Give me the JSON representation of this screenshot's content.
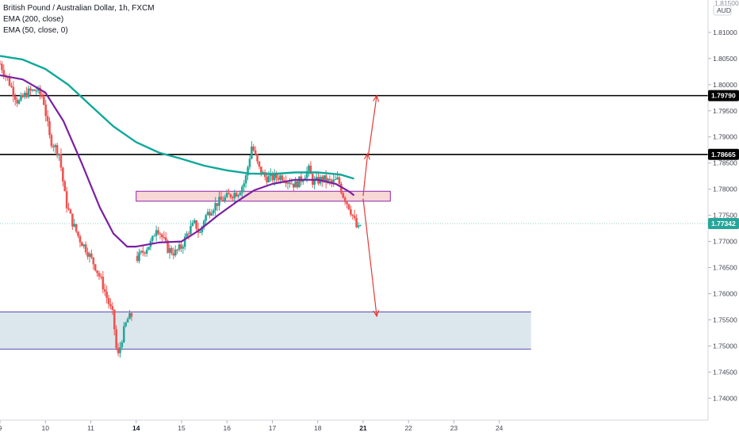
{
  "header": {
    "title": "British Pound / Australian Dollar, 1h, FXCM",
    "indicators": [
      "EMA (200, close)",
      "EMA (50, close, 0)"
    ]
  },
  "colors": {
    "bull": "#26a69a",
    "bear": "#ef5350",
    "ema200": "#0fa89a",
    "ema50": "#7b1fa2",
    "arrow": "#e53935",
    "resistance_line": "#000000",
    "current_price": "#26a69a",
    "supply_zone_fill": "#f8d7d7",
    "supply_zone_border": "#8e24aa",
    "demand_zone_fill": "#dbe7ec",
    "demand_zone_border": "#5c4bb6"
  },
  "chart_data": {
    "type": "candlestick",
    "title": "British Pound / Australian Dollar, 1h, FXCM",
    "y_axis": {
      "range": [
        1.7358,
        1.8162
      ],
      "ticks": [
        "1.81000",
        "1.80500",
        "1.80000",
        "1.79500",
        "1.79000",
        "1.78500",
        "1.78000",
        "1.77500",
        "1.77000",
        "1.76500",
        "1.76000",
        "1.75500",
        "1.75000",
        "1.74500",
        "1.74000"
      ],
      "currency_label": "AUD",
      "partial_top_label": "1.81500"
    },
    "x_axis": {
      "range_days": [
        9,
        24.6
      ],
      "labels": [
        {
          "day": 9,
          "text": "9",
          "bold": false
        },
        {
          "day": 10,
          "text": "10",
          "bold": false
        },
        {
          "day": 11,
          "text": "11",
          "bold": false
        },
        {
          "day": 12,
          "text": "14",
          "bold": true
        },
        {
          "day": 13,
          "text": "15",
          "bold": false
        },
        {
          "day": 14,
          "text": "16",
          "bold": false
        },
        {
          "day": 15,
          "text": "17",
          "bold": false
        },
        {
          "day": 16,
          "text": "18",
          "bold": false
        },
        {
          "day": 17,
          "text": "21",
          "bold": true
        },
        {
          "day": 18,
          "text": "22",
          "bold": false
        },
        {
          "day": 19,
          "text": "23",
          "bold": false
        },
        {
          "day": 20,
          "text": "24",
          "bold": false
        }
      ]
    },
    "horizontal_levels": [
      {
        "price": 1.7979,
        "label": "1.79790"
      },
      {
        "price": 1.78665,
        "label": "1.78665"
      }
    ],
    "current_price": {
      "price": 1.77342,
      "label": "1.77342"
    },
    "zones": [
      {
        "name": "supply",
        "from_day": 12.0,
        "to_day": 17.6,
        "high": 1.7796,
        "low": 1.7777
      },
      {
        "name": "demand",
        "from_day": 8.9,
        "to_day": 20.7,
        "high": 1.7565,
        "low": 1.7494
      }
    ],
    "projection_arrows": [
      {
        "from": [
          17.0,
          1.7787
        ],
        "to": [
          17.1,
          1.7868
        ]
      },
      {
        "from": [
          17.12,
          1.7868
        ],
        "to": [
          17.3,
          1.7979
        ]
      },
      {
        "from": [
          17.0,
          1.7782
        ],
        "to": [
          17.3,
          1.7557
        ]
      }
    ],
    "price_path": [
      [
        9.0,
        1.804
      ],
      [
        9.2,
        1.8005
      ],
      [
        9.4,
        1.7965
      ],
      [
        9.6,
        1.7985
      ],
      [
        9.8,
        1.799
      ],
      [
        9.95,
        1.7975
      ],
      [
        10.1,
        1.7895
      ],
      [
        10.3,
        1.787
      ],
      [
        10.45,
        1.7775
      ],
      [
        10.6,
        1.7735
      ],
      [
        10.75,
        1.7705
      ],
      [
        10.9,
        1.7685
      ],
      [
        11.0,
        1.7668
      ],
      [
        11.1,
        1.7652
      ],
      [
        11.25,
        1.762
      ],
      [
        11.4,
        1.758
      ],
      [
        11.5,
        1.7555
      ],
      [
        11.55,
        1.75
      ],
      [
        11.6,
        1.748
      ],
      [
        11.7,
        1.752
      ],
      [
        11.8,
        1.755
      ],
      [
        11.9,
        1.7558
      ],
      [
        12.0,
        1.7665
      ],
      [
        12.2,
        1.7685
      ],
      [
        12.35,
        1.77
      ],
      [
        12.45,
        1.773
      ],
      [
        12.55,
        1.7712
      ],
      [
        12.7,
        1.7685
      ],
      [
        12.85,
        1.7678
      ],
      [
        13.0,
        1.769
      ],
      [
        13.15,
        1.772
      ],
      [
        13.3,
        1.7735
      ],
      [
        13.4,
        1.7712
      ],
      [
        13.5,
        1.7745
      ],
      [
        13.65,
        1.7762
      ],
      [
        13.8,
        1.7775
      ],
      [
        13.95,
        1.7782
      ],
      [
        14.1,
        1.779
      ],
      [
        14.25,
        1.7795
      ],
      [
        14.4,
        1.7815
      ],
      [
        14.55,
        1.7885
      ],
      [
        14.7,
        1.784
      ],
      [
        14.85,
        1.7822
      ],
      [
        15.0,
        1.7822
      ],
      [
        15.2,
        1.7825
      ],
      [
        15.35,
        1.7817
      ],
      [
        15.5,
        1.7808
      ],
      [
        15.65,
        1.782
      ],
      [
        15.8,
        1.7838
      ],
      [
        15.9,
        1.7812
      ],
      [
        16.1,
        1.782
      ],
      [
        16.3,
        1.7812
      ],
      [
        16.45,
        1.7818
      ],
      [
        16.55,
        1.779
      ],
      [
        16.7,
        1.7765
      ],
      [
        16.8,
        1.7742
      ],
      [
        16.88,
        1.772
      ],
      [
        16.95,
        1.7734
      ]
    ],
    "ema200": [
      [
        9.0,
        1.8055
      ],
      [
        9.5,
        1.8048
      ],
      [
        10.0,
        1.803
      ],
      [
        10.5,
        1.8
      ],
      [
        11.0,
        1.796
      ],
      [
        11.5,
        1.792
      ],
      [
        12.0,
        1.789
      ],
      [
        12.5,
        1.787
      ],
      [
        13.0,
        1.7858
      ],
      [
        13.5,
        1.7845
      ],
      [
        14.0,
        1.7836
      ],
      [
        14.5,
        1.783
      ],
      [
        15.0,
        1.7829
      ],
      [
        15.5,
        1.7832
      ],
      [
        16.0,
        1.7832
      ],
      [
        16.5,
        1.7828
      ],
      [
        16.8,
        1.782
      ]
    ],
    "ema50": [
      [
        9.0,
        1.8018
      ],
      [
        9.5,
        1.801
      ],
      [
        10.0,
        1.7985
      ],
      [
        10.4,
        1.793
      ],
      [
        10.8,
        1.785
      ],
      [
        11.2,
        1.7765
      ],
      [
        11.5,
        1.7715
      ],
      [
        11.8,
        1.769
      ],
      [
        12.0,
        1.769
      ],
      [
        12.5,
        1.7698
      ],
      [
        13.0,
        1.77
      ],
      [
        13.4,
        1.7722
      ],
      [
        13.8,
        1.775
      ],
      [
        14.2,
        1.7775
      ],
      [
        14.6,
        1.7798
      ],
      [
        15.0,
        1.781
      ],
      [
        15.5,
        1.7818
      ],
      [
        16.0,
        1.7818
      ],
      [
        16.4,
        1.781
      ],
      [
        16.7,
        1.7795
      ],
      [
        16.8,
        1.7788
      ]
    ]
  }
}
